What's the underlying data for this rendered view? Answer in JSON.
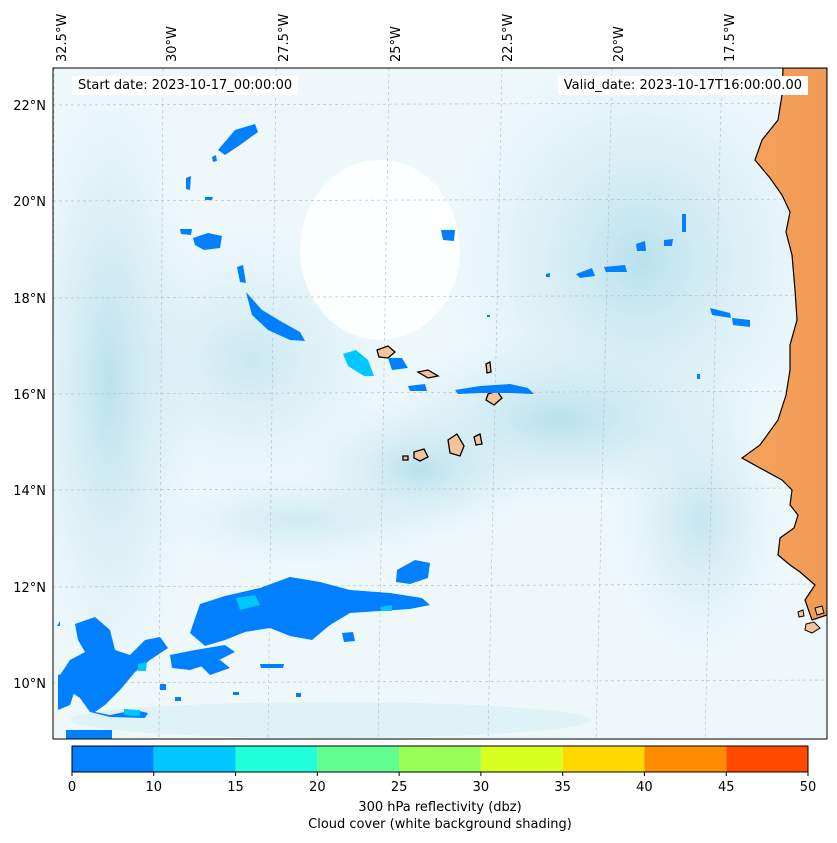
{
  "header": {
    "start_date": "Start date: 2023-10-17_00:00:00",
    "valid_date": "Valid_date: 2023-10-17T16:00:00.00"
  },
  "lon_ticks": [
    "32.5°W",
    "30°W",
    "27.5°W",
    "25°W",
    "22.5°W",
    "20°W",
    "17.5°W"
  ],
  "lat_ticks": [
    "22°N",
    "20°N",
    "18°N",
    "16°N",
    "14°N",
    "12°N",
    "10°N"
  ],
  "colorbar": {
    "ticks": [
      "0",
      "10",
      "15",
      "20",
      "25",
      "30",
      "35",
      "40",
      "45",
      "50"
    ],
    "colors": [
      "#0080ff",
      "#00c8ff",
      "#20ffd8",
      "#60ff90",
      "#98ff58",
      "#d8ff20",
      "#ffd800",
      "#ff8c00",
      "#ff4a00"
    ],
    "label_line1": "300 hPa reflectivity (dbz)",
    "label_line2": "Cloud cover (white background shading)"
  },
  "colors": {
    "reflectivity_low": "#0080ff",
    "reflectivity_mid": "#00c8ff",
    "land": "#f4a25a",
    "island_fill": "#f8c39a",
    "cloud": "#cce9f2"
  }
}
